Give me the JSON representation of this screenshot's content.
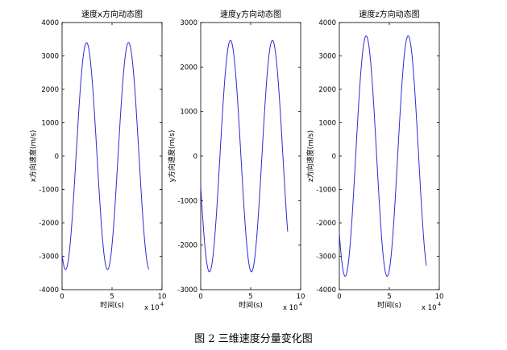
{
  "caption": "图 2  三维速度分量变化图",
  "colors": {
    "line": "#2b2bd6",
    "axes": "#000000"
  },
  "chart_data": [
    {
      "type": "line",
      "title": "速度x方向动态图",
      "xlabel": "时间(s)",
      "ylabel": "x方向速度(m/s)",
      "x_exponent_label": "x 10",
      "x_exponent": "4",
      "xlim": [
        0,
        10
      ],
      "ylim": [
        -4000,
        4000
      ],
      "xticks": [
        "0",
        "5",
        "10"
      ],
      "yticks": [
        "4000",
        "3000",
        "2000",
        "1000",
        "0",
        "-1000",
        "-2000",
        "-3000",
        "-4000"
      ],
      "x_units": "x10^4 s",
      "series": [
        {
          "x_start": 0,
          "x_end": 8.7,
          "amplitude": 3400,
          "period": 4.2,
          "phase_deg": -120
        }
      ]
    },
    {
      "type": "line",
      "title": "速度y方向动态图",
      "xlabel": "时间(s)",
      "ylabel": "y方向速度(m/s)",
      "x_exponent_label": "x 10",
      "x_exponent": "4",
      "xlim": [
        0,
        10
      ],
      "ylim": [
        -3000,
        3000
      ],
      "xticks": [
        "0",
        "5",
        "10"
      ],
      "yticks": [
        "3000",
        "2000",
        "1000",
        "0",
        "-1000",
        "-2000",
        "-3000"
      ],
      "x_units": "x10^4 s",
      "series": [
        {
          "x_start": 0,
          "x_end": 8.7,
          "amplitude": 2600,
          "period": 4.2,
          "phase_deg": 195
        }
      ]
    },
    {
      "type": "line",
      "title": "速度z方向动态图",
      "xlabel": "时间(s)",
      "ylabel": "z方向速度(m/s)",
      "x_exponent_label": "x 10",
      "x_exponent": "4",
      "xlim": [
        0,
        10
      ],
      "ylim": [
        -4000,
        4000
      ],
      "xticks": [
        "0",
        "5",
        "10"
      ],
      "yticks": [
        "4000",
        "3000",
        "2000",
        "1000",
        "0",
        "-1000",
        "-2000",
        "-3000",
        "-4000"
      ],
      "x_units": "x10^4 s",
      "series": [
        {
          "x_start": 0,
          "x_end": 8.7,
          "amplitude": 3600,
          "period": 4.2,
          "phase_deg": -140
        }
      ]
    }
  ]
}
